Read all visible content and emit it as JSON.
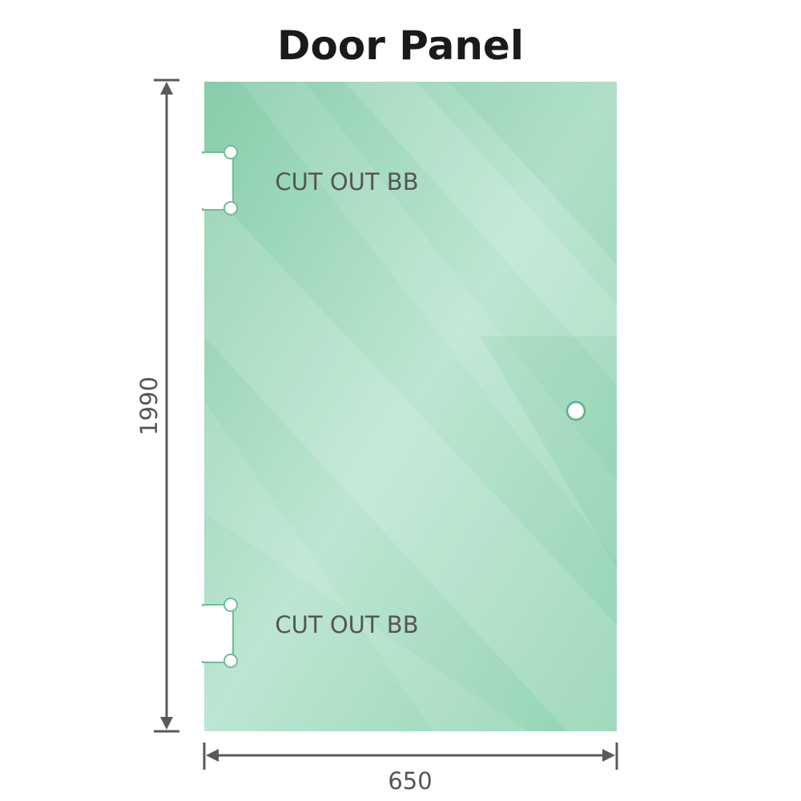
{
  "title": "Door Panel",
  "cutout_top_label": "CUT OUT BB",
  "cutout_bottom_label": "CUT OUT BB",
  "height_dimension": "1990",
  "width_dimension": "650",
  "colors": {
    "glass": "#8fd1b0",
    "glass_light": "#bfe6d2",
    "dimension": "#5a5a5a"
  }
}
